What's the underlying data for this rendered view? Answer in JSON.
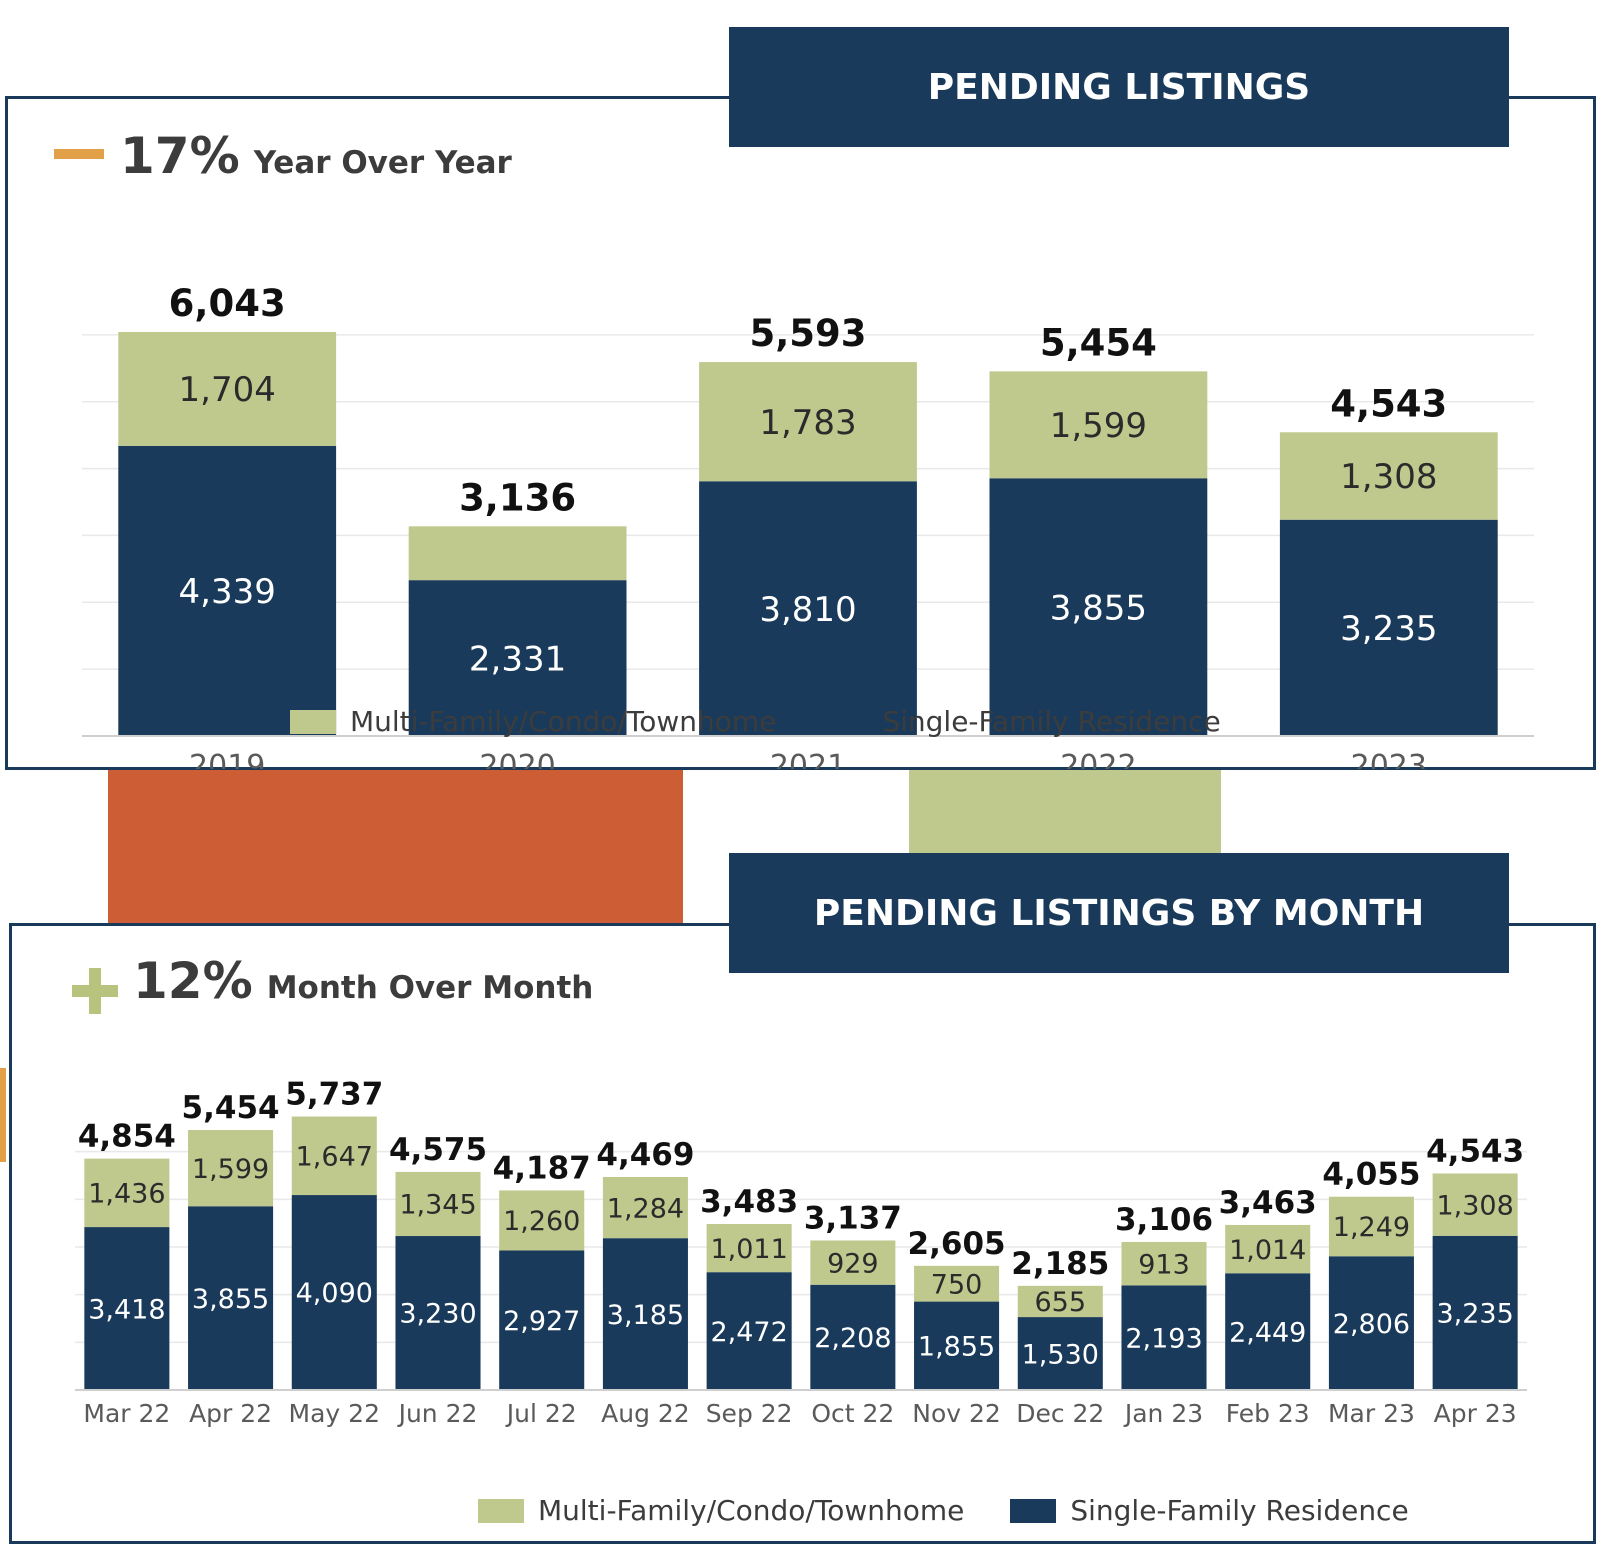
{
  "colors": {
    "navy": "#193a5a",
    "sage": "#bfc98e",
    "orange_indicator": "#e2a048",
    "green_indicator": "#b8c47d",
    "deco_orange": "#cc5d35",
    "deco_sage": "#bfc98e",
    "text_dark": "#3c3c3c",
    "gridline": "#e9e9e9"
  },
  "panel_yearly": {
    "banner_title": "PENDING LISTINGS",
    "stat_indicator_icon": "minus-icon",
    "stat_value": "17%",
    "stat_label": "Year Over Year",
    "legend": {
      "multi_family": "Multi-Family/Condo/Townhome",
      "single_family": "Single-Family Residence"
    }
  },
  "panel_monthly": {
    "banner_title": "PENDING LISTINGS BY MONTH",
    "stat_indicator_icon": "plus-icon",
    "stat_value": "12%",
    "stat_label": "Month Over Month",
    "legend": {
      "multi_family": "Multi-Family/Condo/Townhome",
      "single_family": "Single-Family Residence"
    }
  },
  "chart_data": [
    {
      "type": "bar",
      "stacked": true,
      "categories": [
        "2019",
        "2020",
        "2021",
        "2022",
        "2023"
      ],
      "series": [
        {
          "name": "Single-Family Residence",
          "values": [
            4339,
            2331,
            3810,
            3855,
            3235
          ],
          "labels": [
            "4,339",
            "2,331",
            "3,810",
            "3,855",
            "3,235"
          ]
        },
        {
          "name": "Multi-Family/Condo/Townhome",
          "values": [
            1704,
            805,
            1783,
            1599,
            1308
          ],
          "labels": [
            "1,704",
            "",
            "1,783",
            "1,599",
            "1,308"
          ]
        }
      ],
      "totals": [
        6043,
        3136,
        5593,
        5454,
        4543
      ],
      "total_labels": [
        "6,043",
        "3,136",
        "5,593",
        "5,454",
        "4,543"
      ],
      "ylim": [
        0,
        7000
      ],
      "grid": true,
      "legend_position": "bottom"
    },
    {
      "type": "bar",
      "stacked": true,
      "categories": [
        "Mar 22",
        "Apr 22",
        "May 22",
        "Jun 22",
        "Jul 22",
        "Aug 22",
        "Sep 22",
        "Oct 22",
        "Nov 22",
        "Dec 22",
        "Jan 23",
        "Feb 23",
        "Mar 23",
        "Apr 23"
      ],
      "series": [
        {
          "name": "Single-Family Residence",
          "values": [
            3418,
            3855,
            4090,
            3230,
            2927,
            3185,
            2472,
            2208,
            1855,
            1530,
            2193,
            2449,
            2806,
            3235
          ],
          "labels": [
            "3,418",
            "3,855",
            "4,090",
            "3,230",
            "2,927",
            "3,185",
            "2,472",
            "2,208",
            "1,855",
            "1,530",
            "2,193",
            "2,449",
            "2,806",
            "3,235"
          ]
        },
        {
          "name": "Multi-Family/Condo/Townhome",
          "values": [
            1436,
            1599,
            1647,
            1345,
            1260,
            1284,
            1011,
            929,
            750,
            655,
            913,
            1014,
            1249,
            1308
          ],
          "labels": [
            "1,436",
            "1,599",
            "1,647",
            "1,345",
            "1,260",
            "1,284",
            "1,011",
            "929",
            "750",
            "655",
            "913",
            "1,014",
            "1,249",
            "1,308"
          ]
        }
      ],
      "totals": [
        4854,
        5454,
        5737,
        4575,
        4187,
        4469,
        3483,
        3137,
        2605,
        2185,
        3106,
        3463,
        4055,
        4543
      ],
      "total_labels": [
        "4,854",
        "5,454",
        "5,737",
        "4,575",
        "4,187",
        "4,469",
        "3,483",
        "3,137",
        "2,605",
        "2,185",
        "3,106",
        "3,463",
        "4,055",
        "4,543"
      ],
      "ylim": [
        0,
        6000
      ],
      "grid": true,
      "legend_position": "bottom"
    }
  ]
}
